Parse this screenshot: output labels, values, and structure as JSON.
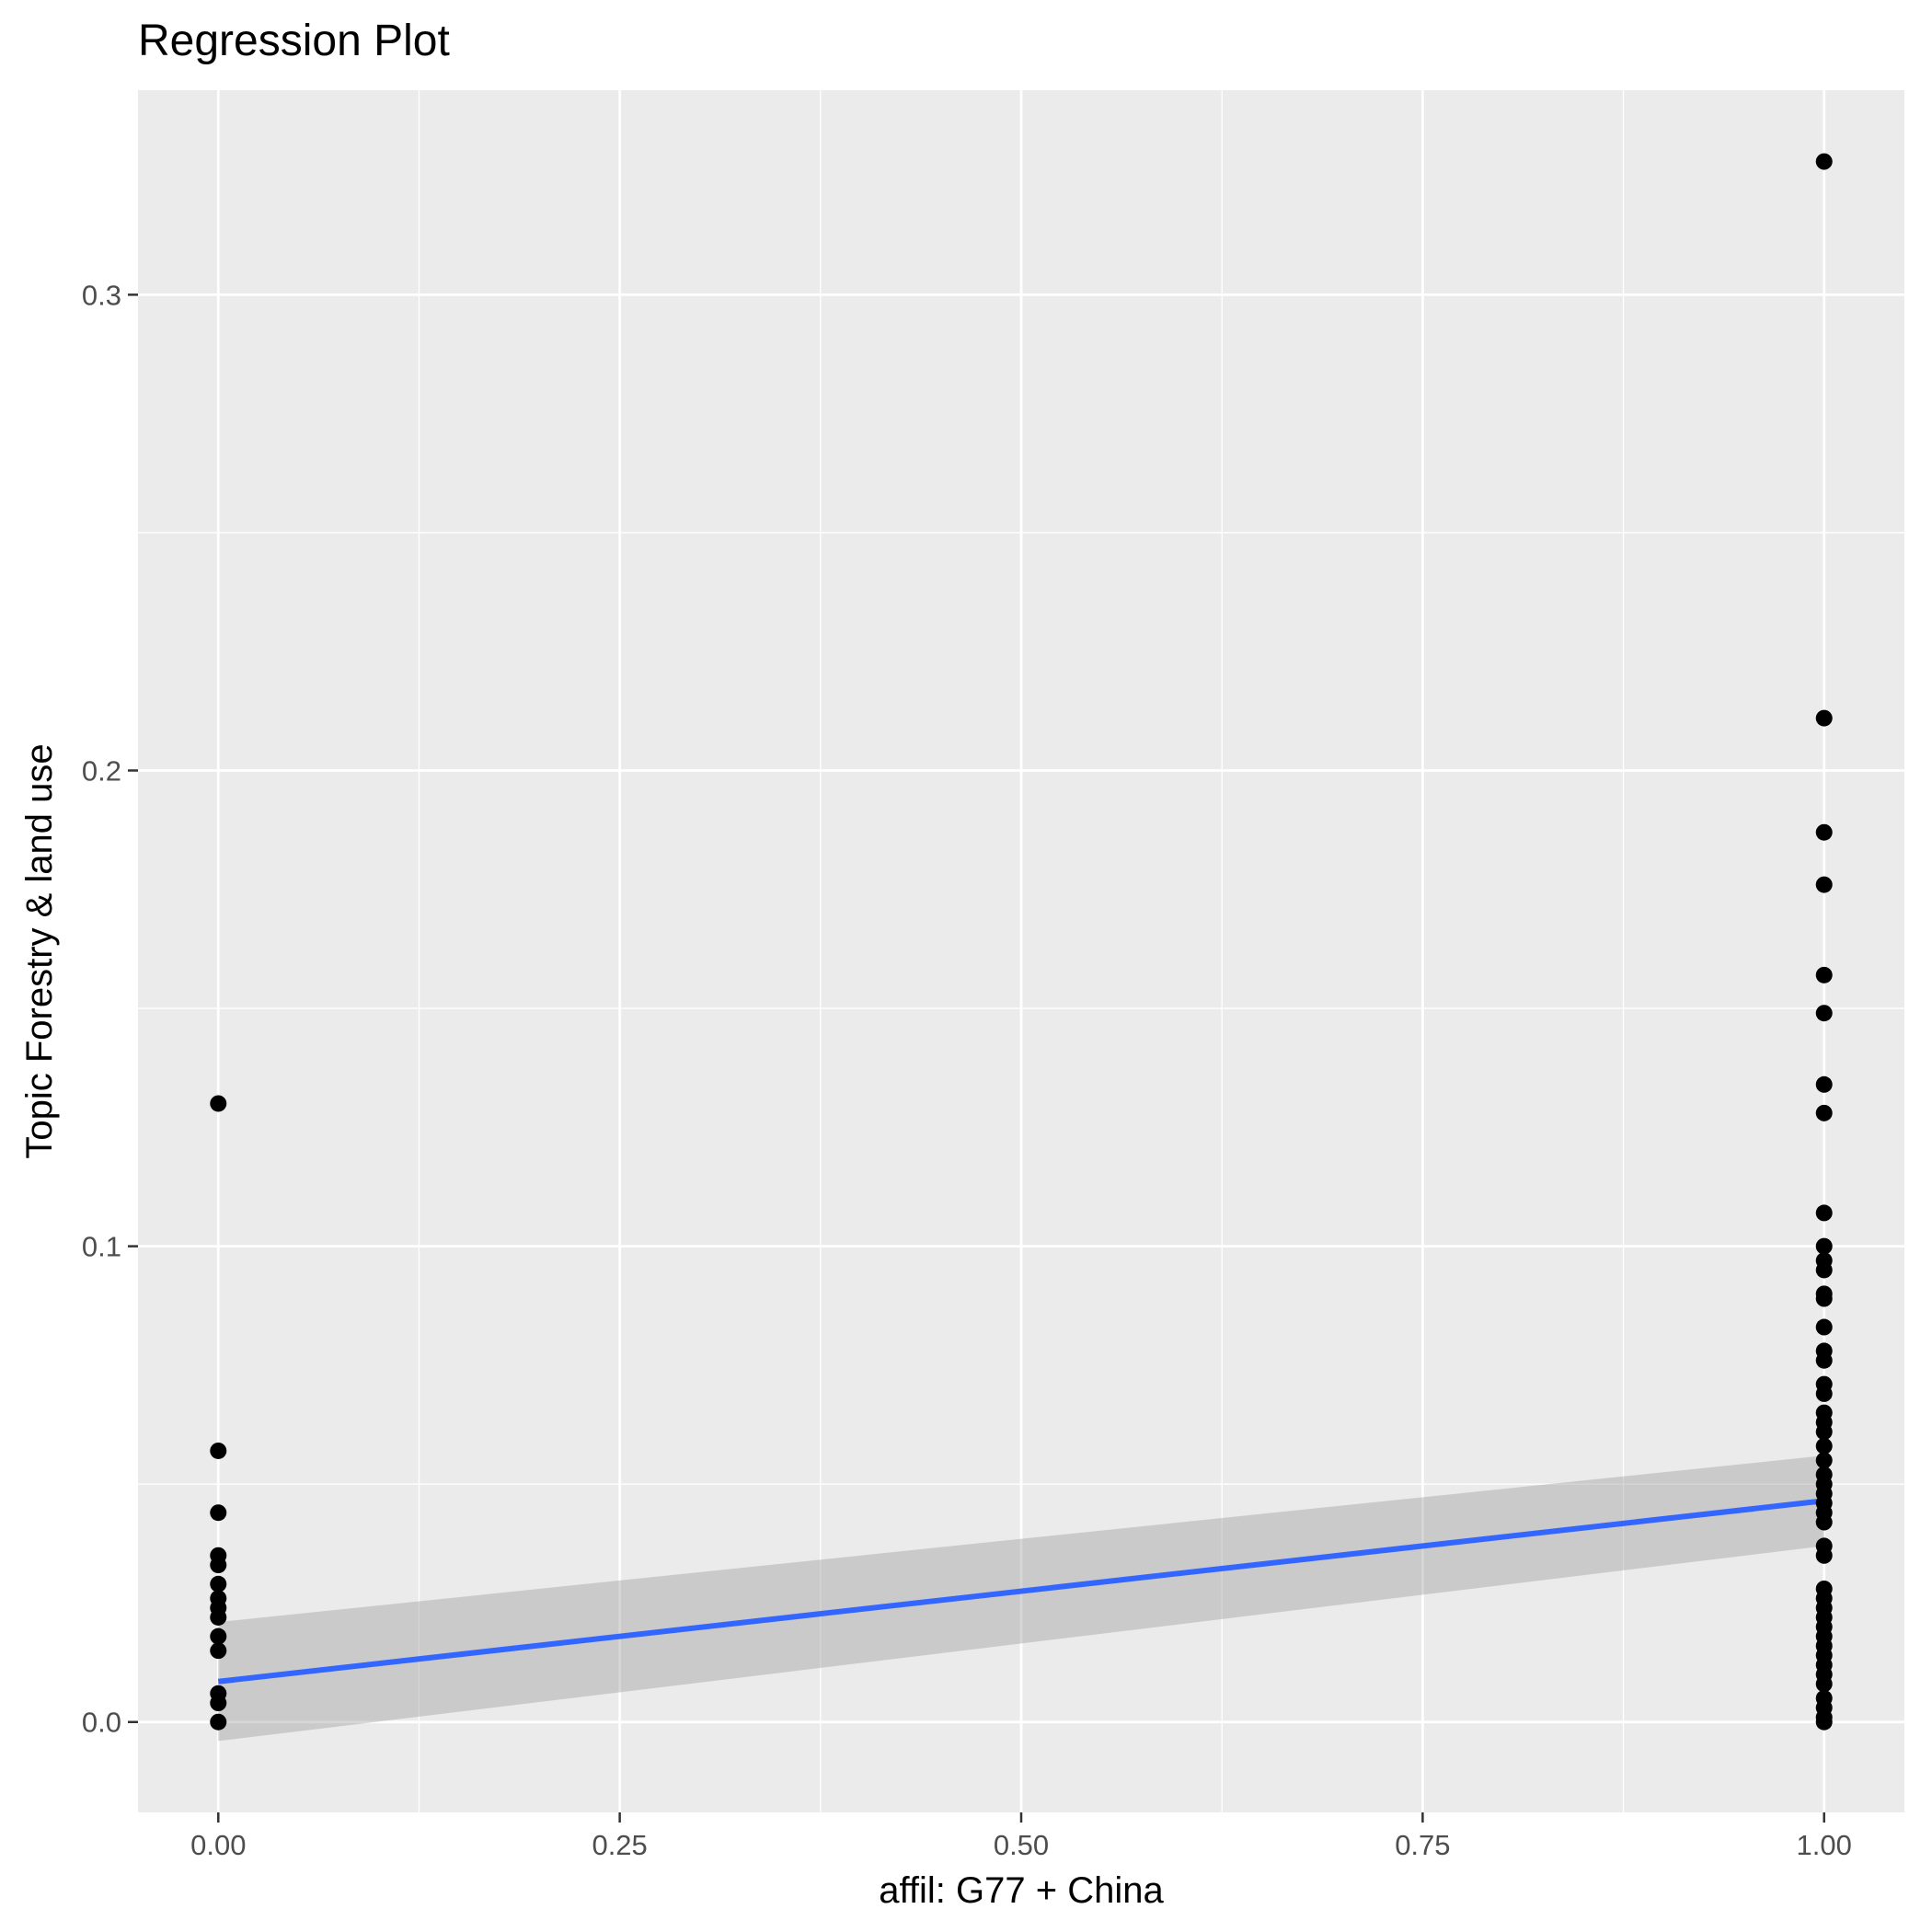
{
  "chart_data": {
    "type": "scatter",
    "title": "Regression Plot",
    "xlabel": "affil: G77 + China",
    "ylabel": "Topic Forestry & land use",
    "xlim": [
      -0.05,
      1.05
    ],
    "ylim": [
      -0.019,
      0.343
    ],
    "x_ticks": [
      0,
      0.25,
      0.5,
      0.75,
      1
    ],
    "x_tick_labels": [
      "0.00",
      "0.25",
      "0.50",
      "0.75",
      "1.00"
    ],
    "y_ticks": [
      0,
      0.1,
      0.2,
      0.3
    ],
    "y_tick_labels": [
      "0.0",
      "0.1",
      "0.2",
      "0.3"
    ],
    "grid": true,
    "colors": {
      "panel_background": "#ebebeb",
      "grid": "#ffffff",
      "points": "#000000",
      "fit_line": "#3366ff",
      "confidence_band": "#999999"
    },
    "series": [
      {
        "x": 0,
        "y": [
          0.13,
          0.057,
          0.044,
          0.035,
          0.033,
          0.029,
          0.026,
          0.024,
          0.022,
          0.018,
          0.015,
          0.006,
          0.004,
          0.0
        ]
      },
      {
        "x": 1,
        "y": [
          0.328,
          0.211,
          0.187,
          0.176,
          0.157,
          0.149,
          0.134,
          0.128,
          0.107,
          0.1,
          0.097,
          0.095,
          0.09,
          0.089,
          0.083,
          0.078,
          0.076,
          0.071,
          0.069,
          0.065,
          0.063,
          0.061,
          0.058,
          0.055,
          0.052,
          0.05,
          0.048,
          0.046,
          0.044,
          0.042,
          0.037,
          0.035,
          0.028,
          0.026,
          0.024,
          0.022,
          0.02,
          0.018,
          0.016,
          0.014,
          0.012,
          0.01,
          0.008,
          0.005,
          0.003,
          0.001,
          0.0
        ]
      }
    ],
    "regression": {
      "x": [
        0,
        1
      ],
      "fit": [
        0.0085,
        0.0465
      ],
      "ci_lower": [
        -0.004,
        0.037
      ],
      "ci_upper": [
        0.021,
        0.056
      ]
    }
  }
}
